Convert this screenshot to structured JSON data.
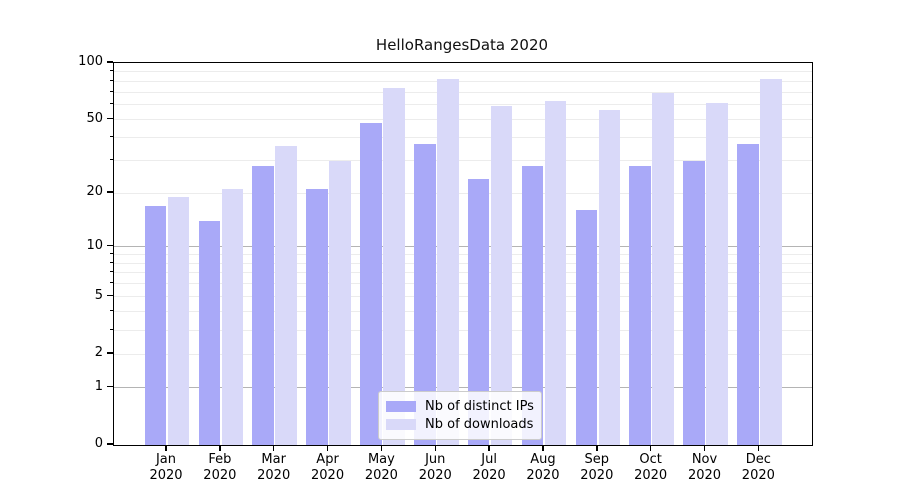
{
  "title": "HelloRangesData 2020",
  "chart_data": {
    "type": "bar",
    "title": "HelloRangesData 2020",
    "categories": [
      "Jan",
      "Feb",
      "Mar",
      "Apr",
      "May",
      "Jun",
      "Jul",
      "Aug",
      "Sep",
      "Oct",
      "Nov",
      "Dec"
    ],
    "x_sublabel": "2020",
    "series": [
      {
        "name": "Nb of distinct IPs",
        "color": "#a9a9f8",
        "values": [
          17,
          14,
          28,
          21,
          48,
          37,
          24,
          28,
          16,
          28,
          30,
          37
        ]
      },
      {
        "name": "Nb of downloads",
        "color": "#d9d9f9",
        "values": [
          19,
          21,
          36,
          30,
          74,
          82,
          59,
          63,
          56,
          69,
          61,
          82
        ]
      }
    ],
    "yscale": "log1p",
    "ylim": [
      0,
      100
    ],
    "ytick_values": [
      100,
      50,
      20,
      10,
      5,
      2,
      1,
      0
    ],
    "ytick_labels": [
      "100",
      "50",
      "20",
      "10",
      "5",
      "2",
      "1",
      "0"
    ],
    "yminor_values": [
      3,
      4,
      6,
      7,
      8,
      9,
      30,
      40,
      60,
      70,
      80,
      90
    ],
    "ygrid_major": [
      1,
      10
    ],
    "ygrid_minor": [
      2,
      3,
      4,
      5,
      6,
      7,
      8,
      9,
      20,
      30,
      40,
      50,
      60,
      70,
      80,
      90
    ],
    "grid": "horizontal major+minor",
    "legend_position": "inside lower-center"
  }
}
